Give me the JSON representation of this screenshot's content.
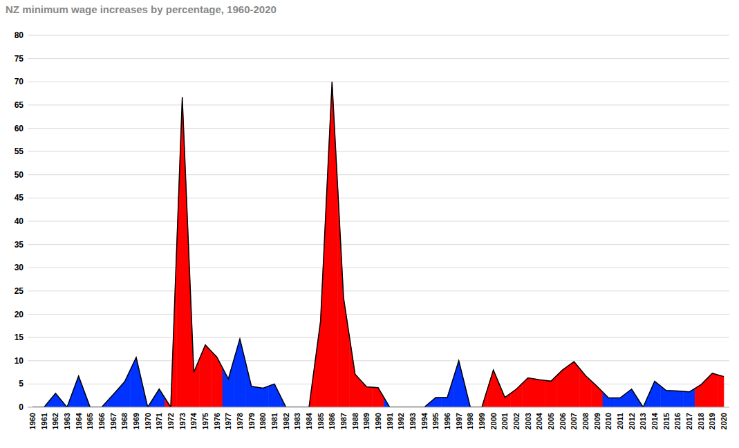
{
  "chart_data": {
    "type": "area",
    "title": "NZ minimum wage increases by percentage, 1960-2020",
    "categories": [
      "1960",
      "1961",
      "1962",
      "1963",
      "1964",
      "1965",
      "1966",
      "1967",
      "1968",
      "1969",
      "1970",
      "1971",
      "1972",
      "1973",
      "1974",
      "1975",
      "1976",
      "1977",
      "1978",
      "1979",
      "1980",
      "1981",
      "1982",
      "1983",
      "1984",
      "1985",
      "1986",
      "1987",
      "1988",
      "1989",
      "1990",
      "1991",
      "1992",
      "1993",
      "1994",
      "1995",
      "1996",
      "1997",
      "1998",
      "1999",
      "2000",
      "2001",
      "2002",
      "2003",
      "2004",
      "2005",
      "2006",
      "2007",
      "2008",
      "2009",
      "2010",
      "2011",
      "2012",
      "2013",
      "2014",
      "2015",
      "2016",
      "2017",
      "2018",
      "2019",
      "2020"
    ],
    "values": [
      0,
      0,
      3,
      0,
      6.7,
      0,
      0,
      2.7,
      5.5,
      10.7,
      0,
      3.9,
      0,
      66.7,
      7.5,
      13.4,
      10.8,
      6.1,
      14.7,
      4.5,
      4.1,
      5.0,
      0,
      0,
      0,
      18.5,
      70,
      23.5,
      7.1,
      4.4,
      4.2,
      0,
      0,
      0,
      0,
      2.1,
      2.1,
      10,
      0,
      0,
      8,
      2.1,
      3.9,
      6.3,
      5.9,
      5.6,
      8.0,
      9.8,
      6.8,
      4.5,
      2.0,
      2.0,
      3.9,
      0,
      5.6,
      3.6,
      3.5,
      3.3,
      4.8,
      7.3,
      6.6
    ],
    "colors": [
      "#0033ff",
      "#0033ff",
      "#0033ff",
      "#0033ff",
      "#0033ff",
      "#0033ff",
      "#0033ff",
      "#0033ff",
      "#0033ff",
      "#0033ff",
      "#0033ff",
      "#0033ff",
      "#ff0000",
      "#ff0000",
      "#ff0000",
      "#ff0000",
      "#ff0000",
      "#0033ff",
      "#0033ff",
      "#0033ff",
      "#0033ff",
      "#0033ff",
      "#0033ff",
      "#0033ff",
      "#ff0000",
      "#ff0000",
      "#ff0000",
      "#ff0000",
      "#ff0000",
      "#ff0000",
      "#ff0000",
      "#0033ff",
      "#0033ff",
      "#0033ff",
      "#0033ff",
      "#0033ff",
      "#0033ff",
      "#0033ff",
      "#0033ff",
      "#ff0000",
      "#ff0000",
      "#ff0000",
      "#ff0000",
      "#ff0000",
      "#ff0000",
      "#ff0000",
      "#ff0000",
      "#ff0000",
      "#ff0000",
      "#ff0000",
      "#0033ff",
      "#0033ff",
      "#0033ff",
      "#0033ff",
      "#0033ff",
      "#0033ff",
      "#0033ff",
      "#0033ff",
      "#ff0000",
      "#ff0000",
      "#ff0000"
    ],
    "ylim": [
      0,
      80
    ],
    "yticks": [
      0,
      5,
      10,
      15,
      20,
      25,
      30,
      35,
      40,
      45,
      50,
      55,
      60,
      65,
      70,
      75,
      80
    ],
    "grid": true
  }
}
